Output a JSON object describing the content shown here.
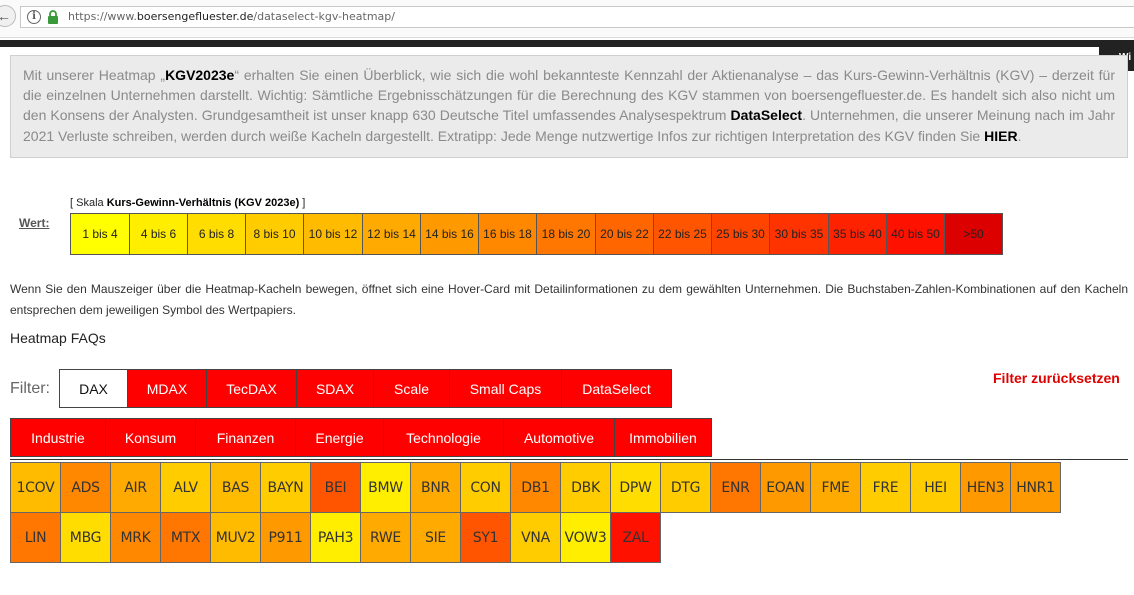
{
  "browser": {
    "url_prefix": "https://www.",
    "url_host": "boersengefluester.de",
    "url_path": "/dataselect-kgv-heatmap/"
  },
  "site": {
    "tab_label": "Wi"
  },
  "intro": {
    "p1": "Mit unserer Heatmap „",
    "highlight1": "KGV2023e",
    "p2": "“ erhalten Sie einen Überblick, wie sich die wohl bekannteste Kennzahl der Aktienanalyse – das Kurs-Gewinn-Verhältnis (KGV)  – derzeit für die einzelnen Unternehmen darstellt. Wichtig: Sämtliche Ergebnisschätzungen für die Berechnung des KGV stammen von boersengefluester.de. Es handelt sich also nicht um den Konsens der Analysten. Grundgesamtheit ist unser knapp 630 Deutsche Titel umfassendes Analysespektrum ",
    "highlight2": "DataSelect",
    "p3": ". Unternehmen, die unserer Meinung nach im Jahr 2021 Verluste schreiben, werden durch weiße Kacheln dargestellt. Extratipp: Jede Menge nutzwertige Infos zur richtigen Interpretation des KGV finden Sie ",
    "highlight3": "HIER",
    "p4": "."
  },
  "scale": {
    "caption_prefix": "[ Skala ",
    "caption_bold": "Kurs-Gewinn-Verhältnis (KGV 2023e)",
    "caption_suffix": " ]",
    "wert_label": "Wert:",
    "cells": [
      {
        "label": "1 bis 4",
        "color": "#ffff00"
      },
      {
        "label": "4 bis 6",
        "color": "#ffee00"
      },
      {
        "label": "6 bis 8",
        "color": "#ffdd00"
      },
      {
        "label": "8 bis 10",
        "color": "#ffcc00"
      },
      {
        "label": "10 bis 12",
        "color": "#ffbb00"
      },
      {
        "label": "12 bis 14",
        "color": "#ffaa00"
      },
      {
        "label": "14 bis 16",
        "color": "#ff9900"
      },
      {
        "label": "16 bis 18",
        "color": "#ff8800"
      },
      {
        "label": "18 bis 20",
        "color": "#ff7700"
      },
      {
        "label": "20 bis 22",
        "color": "#ff6600"
      },
      {
        "label": "22 bis 25",
        "color": "#ff5500"
      },
      {
        "label": "25 bis 30",
        "color": "#ff4400"
      },
      {
        "label": "30 bis 35",
        "color": "#ff3300"
      },
      {
        "label": "35 bis 40",
        "color": "#ff2200"
      },
      {
        "label": "40 bis 50",
        "color": "#ff1100"
      },
      {
        "label": ">50",
        "color": "#dd0000"
      }
    ]
  },
  "explanation": "Wenn Sie den Mauszeiger über die Heatmap-Kacheln bewegen, öffnet sich eine Hover-Card mit Detailinformationen zu dem gewählten Unternehmen. Die Buchstaben-Zahlen-Kombinationen auf den Kacheln entsprechen dem jeweiligen Symbol des Wertpapiers.",
  "faq_link": "Heatmap FAQs",
  "filter": {
    "label": "Filter:",
    "reset": "Filter zurücksetzen",
    "indices": [
      {
        "label": "DAX",
        "active": true
      },
      {
        "label": "MDAX",
        "active": false
      },
      {
        "label": "TecDAX",
        "active": false
      },
      {
        "label": "SDAX",
        "active": false
      },
      {
        "label": "Scale",
        "active": false
      },
      {
        "label": "Small Caps",
        "active": false
      },
      {
        "label": "DataSelect",
        "active": false
      }
    ],
    "sectors": [
      {
        "label": "Industrie"
      },
      {
        "label": "Konsum"
      },
      {
        "label": "Finanzen"
      },
      {
        "label": "Energie"
      },
      {
        "label": "Technologie"
      },
      {
        "label": "Automotive"
      },
      {
        "label": "Immobilien"
      }
    ]
  },
  "heatmap": {
    "rows": [
      [
        {
          "symbol": "1COV",
          "color": "#ffbb00"
        },
        {
          "symbol": "ADS",
          "color": "#ff8800"
        },
        {
          "symbol": "AIR",
          "color": "#ffaa00"
        },
        {
          "symbol": "ALV",
          "color": "#ffcc00"
        },
        {
          "symbol": "BAS",
          "color": "#ffbb00"
        },
        {
          "symbol": "BAYN",
          "color": "#ffcc00"
        },
        {
          "symbol": "BEI",
          "color": "#ff5500"
        },
        {
          "symbol": "BMW",
          "color": "#ffee00"
        },
        {
          "symbol": "BNR",
          "color": "#ffaa00"
        },
        {
          "symbol": "CON",
          "color": "#ffcc00"
        },
        {
          "symbol": "DB1",
          "color": "#ff8800"
        },
        {
          "symbol": "DBK",
          "color": "#ffcc00"
        },
        {
          "symbol": "DPW",
          "color": "#ffdd00"
        },
        {
          "symbol": "DTG",
          "color": "#ffcc00"
        },
        {
          "symbol": "ENR",
          "color": "#ff7700"
        },
        {
          "symbol": "EOAN",
          "color": "#ff9900"
        },
        {
          "symbol": "FME",
          "color": "#ffaa00"
        },
        {
          "symbol": "FRE",
          "color": "#ffcc00"
        },
        {
          "symbol": "HEI",
          "color": "#ffcc00"
        },
        {
          "symbol": "HEN3",
          "color": "#ff9900"
        },
        {
          "symbol": "HNR1",
          "color": "#ff9900"
        }
      ],
      [
        {
          "symbol": "LIN",
          "color": "#ff7700"
        },
        {
          "symbol": "MBG",
          "color": "#ffdd00"
        },
        {
          "symbol": "MRK",
          "color": "#ff8800"
        },
        {
          "symbol": "MTX",
          "color": "#ff7700"
        },
        {
          "symbol": "MUV2",
          "color": "#ffbb00"
        },
        {
          "symbol": "P911",
          "color": "#ff9900"
        },
        {
          "symbol": "PAH3",
          "color": "#ffee00"
        },
        {
          "symbol": "RWE",
          "color": "#ffaa00"
        },
        {
          "symbol": "SIE",
          "color": "#ffaa00"
        },
        {
          "symbol": "SY1",
          "color": "#ff5500"
        },
        {
          "symbol": "VNA",
          "color": "#ffcc00"
        },
        {
          "symbol": "VOW3",
          "color": "#ffee00"
        },
        {
          "symbol": "ZAL",
          "color": "#ff1100"
        }
      ]
    ]
  }
}
